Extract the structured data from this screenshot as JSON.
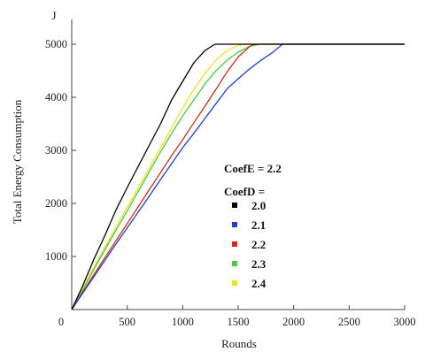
{
  "chart_data": {
    "type": "line",
    "title": "",
    "xlabel": "Rounds",
    "ylabel": "Total Energy Consumption",
    "yunit": "J",
    "xlim": [
      0,
      3000
    ],
    "ylim": [
      0,
      5000
    ],
    "xticks": [
      0,
      500,
      1000,
      1500,
      2000,
      2500,
      3000
    ],
    "yticks": [
      1000,
      2000,
      3000,
      4000,
      5000
    ],
    "grid": false,
    "legend_placement": "center-right",
    "annotation": "CoefE = 2.2",
    "legend_title": "CoefD =",
    "series": [
      {
        "name": "2.0",
        "color": "#000000",
        "x": [
          0,
          100,
          200,
          300,
          400,
          500,
          600,
          700,
          800,
          900,
          1000,
          1100,
          1200,
          1290,
          1400,
          2000,
          3000
        ],
        "y": [
          0,
          450,
          950,
          1400,
          1880,
          2300,
          2700,
          3100,
          3500,
          3950,
          4300,
          4650,
          4880,
          5000,
          5000,
          5000,
          5000
        ]
      },
      {
        "name": "2.1",
        "color": "#1f3fcc",
        "x": [
          0,
          100,
          200,
          300,
          400,
          500,
          600,
          700,
          800,
          900,
          1000,
          1100,
          1200,
          1300,
          1400,
          1500,
          1600,
          1700,
          1800,
          1900,
          2000,
          3000
        ],
        "y": [
          0,
          310,
          620,
          930,
          1240,
          1540,
          1840,
          2140,
          2450,
          2750,
          3050,
          3320,
          3600,
          3880,
          4160,
          4350,
          4530,
          4690,
          4830,
          5000,
          5000,
          5000
        ]
      },
      {
        "name": "2.2",
        "color": "#c83018",
        "x": [
          0,
          100,
          200,
          300,
          400,
          500,
          600,
          700,
          800,
          900,
          1000,
          1100,
          1200,
          1300,
          1400,
          1500,
          1600,
          1640,
          2000,
          3000
        ],
        "y": [
          0,
          330,
          660,
          980,
          1300,
          1620,
          1940,
          2260,
          2580,
          2900,
          3200,
          3520,
          3830,
          4150,
          4480,
          4760,
          4950,
          5000,
          5000,
          5000
        ]
      },
      {
        "name": "2.3",
        "color": "#4cc83c",
        "x": [
          0,
          100,
          200,
          300,
          400,
          500,
          600,
          700,
          800,
          900,
          1000,
          1100,
          1200,
          1300,
          1400,
          1500,
          1600,
          1700,
          2000,
          3000
        ],
        "y": [
          0,
          370,
          760,
          1130,
          1500,
          1860,
          2230,
          2600,
          2970,
          3320,
          3650,
          3950,
          4250,
          4500,
          4700,
          4850,
          4960,
          5000,
          5000,
          5000
        ]
      },
      {
        "name": "2.4",
        "color": "#f0e02a",
        "x": [
          0,
          100,
          200,
          300,
          400,
          500,
          600,
          700,
          800,
          900,
          1000,
          1100,
          1200,
          1300,
          1400,
          1500,
          1550,
          2000,
          3000
        ],
        "y": [
          0,
          400,
          800,
          1180,
          1560,
          1930,
          2300,
          2670,
          3050,
          3420,
          3800,
          4150,
          4450,
          4700,
          4880,
          4980,
          5000,
          5000,
          5000
        ]
      }
    ]
  }
}
